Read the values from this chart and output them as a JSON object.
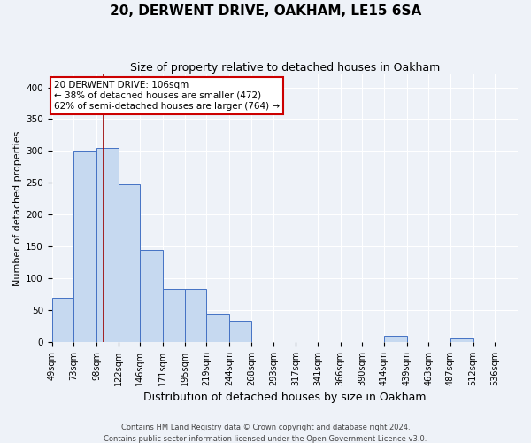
{
  "title": "20, DERWENT DRIVE, OAKHAM, LE15 6SA",
  "subtitle": "Size of property relative to detached houses in Oakham",
  "xlabel": "Distribution of detached houses by size in Oakham",
  "ylabel": "Number of detached properties",
  "bin_labels": [
    "49sqm",
    "73sqm",
    "98sqm",
    "122sqm",
    "146sqm",
    "171sqm",
    "195sqm",
    "219sqm",
    "244sqm",
    "268sqm",
    "293sqm",
    "317sqm",
    "341sqm",
    "366sqm",
    "390sqm",
    "414sqm",
    "439sqm",
    "463sqm",
    "487sqm",
    "512sqm",
    "536sqm"
  ],
  "bin_edges": [
    49,
    73,
    98,
    122,
    146,
    171,
    195,
    219,
    244,
    268,
    293,
    317,
    341,
    366,
    390,
    414,
    439,
    463,
    487,
    512,
    536
  ],
  "bar_heights": [
    70,
    300,
    305,
    248,
    145,
    83,
    83,
    45,
    33,
    0,
    0,
    0,
    0,
    0,
    0,
    10,
    0,
    0,
    5,
    0
  ],
  "bar_color": "#c6d9f0",
  "bar_edge_color": "#4472c4",
  "property_size": 106,
  "vline_color": "#990000",
  "annotation_line1": "20 DERWENT DRIVE: 106sqm",
  "annotation_line2": "← 38% of detached houses are smaller (472)",
  "annotation_line3": "62% of semi-detached houses are larger (764) →",
  "annotation_box_color": "#ffffff",
  "annotation_box_edge": "#cc0000",
  "ylim": [
    0,
    420
  ],
  "yticks": [
    0,
    50,
    100,
    150,
    200,
    250,
    300,
    350,
    400
  ],
  "footer": "Contains HM Land Registry data © Crown copyright and database right 2024.\nContains public sector information licensed under the Open Government Licence v3.0.",
  "background_color": "#eef2f8",
  "grid_color": "#ffffff",
  "title_fontsize": 11,
  "subtitle_fontsize": 9,
  "xlabel_fontsize": 9,
  "ylabel_fontsize": 8,
  "tick_fontsize": 7,
  "annotation_fontsize": 7.5,
  "footer_fontsize": 6
}
